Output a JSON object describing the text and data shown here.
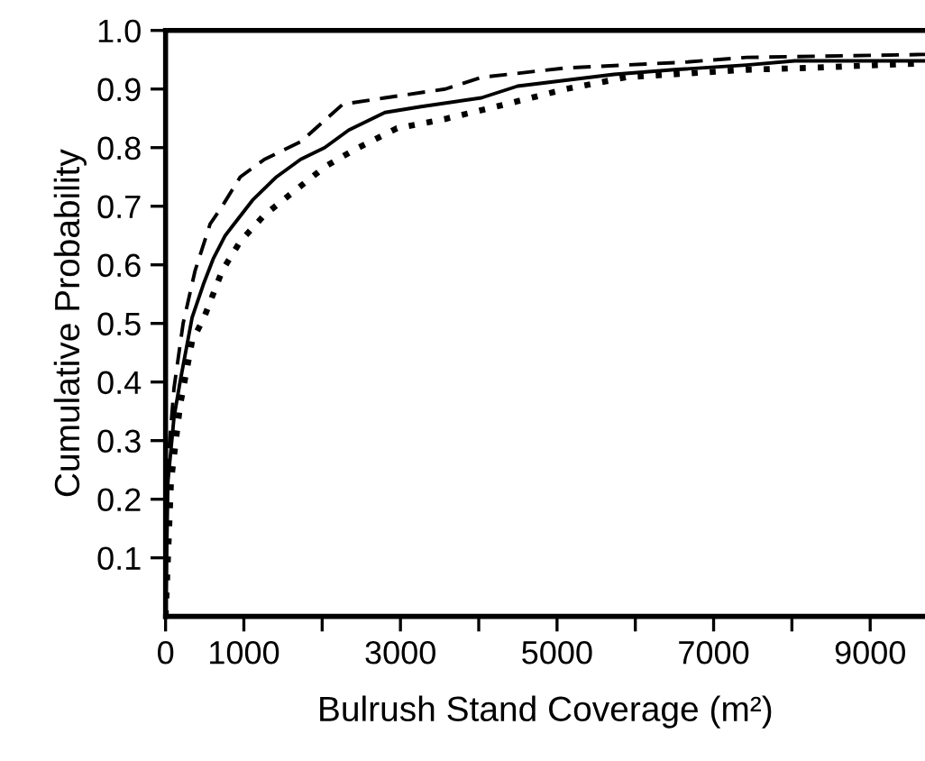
{
  "chart_data": {
    "type": "line",
    "xlabel": "Bulrush Stand Coverage (m²)",
    "ylabel": "Cumulative Probability",
    "xlim": [
      0,
      9700
    ],
    "ylim": [
      0,
      1.0
    ],
    "xticks": [
      0,
      1000,
      {
        "value": 2000,
        "label": null
      },
      3000,
      {
        "value": 4000,
        "label": null
      },
      5000,
      {
        "value": 6000,
        "label": null
      },
      7000,
      {
        "value": 8000,
        "label": null
      },
      9000
    ],
    "yticks": [
      0.1,
      0.2,
      0.3,
      0.4,
      0.5,
      0.6,
      0.7,
      0.8,
      0.9,
      {
        "value": 1,
        "label": "1.0"
      }
    ],
    "grid": false,
    "legend": false,
    "marker": "none",
    "series": [
      {
        "color": "#000000",
        "line_style": "solid",
        "x": [
          0,
          30,
          108,
          185,
          339,
          492,
          608,
          762,
          877,
          1109,
          1416,
          1725,
          2032,
          2340,
          2802,
          3264,
          4034,
          4497,
          5727,
          6497,
          7421,
          8036,
          9700
        ],
        "values": [
          0.0,
          0.23,
          0.34,
          0.4,
          0.51,
          0.57,
          0.61,
          0.65,
          0.67,
          0.71,
          0.75,
          0.78,
          0.8,
          0.83,
          0.86,
          0.87,
          0.885,
          0.905,
          0.925,
          0.933,
          0.941,
          0.948,
          0.948
        ]
      },
      {
        "color": "#000000",
        "line_style": "dashed",
        "x": [
          0,
          10,
          108,
          224,
          377,
          570,
          723,
          954,
          1263,
          1725,
          2263,
          2802,
          3573,
          4034,
          5112,
          6651,
          7421,
          9700
        ],
        "values": [
          0.0,
          0.23,
          0.39,
          0.5,
          0.59,
          0.67,
          0.7,
          0.75,
          0.78,
          0.81,
          0.874,
          0.885,
          0.9,
          0.92,
          0.936,
          0.946,
          0.954,
          0.959
        ]
      },
      {
        "color": "#000000",
        "line_style": "dotted",
        "x": [
          0,
          69,
          185,
          339,
          492,
          723,
          954,
          1263,
          1647,
          2032,
          2418,
          2956,
          3573,
          4342,
          5112,
          5882,
          7421,
          8192,
          9700
        ],
        "values": [
          0.0,
          0.23,
          0.36,
          0.47,
          0.51,
          0.59,
          0.64,
          0.685,
          0.726,
          0.767,
          0.797,
          0.833,
          0.849,
          0.874,
          0.9,
          0.92,
          0.933,
          0.936,
          0.944
        ]
      }
    ]
  }
}
